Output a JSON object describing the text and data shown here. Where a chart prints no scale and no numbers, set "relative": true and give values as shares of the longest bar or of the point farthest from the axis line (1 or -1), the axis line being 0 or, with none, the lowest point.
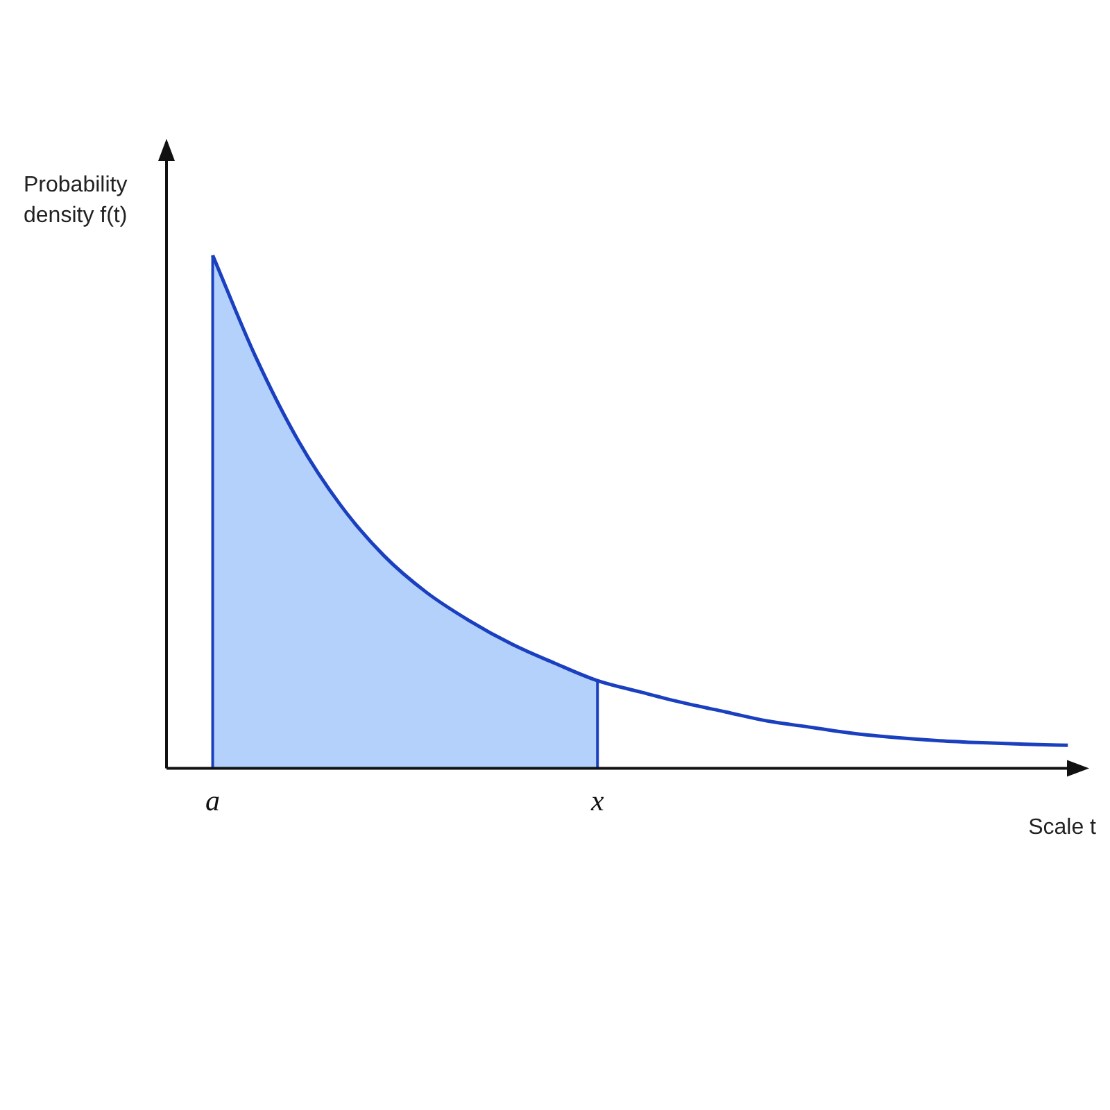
{
  "chart_data": {
    "type": "line",
    "relative": true,
    "xlabel": "Scale t",
    "ylabel": "Probability density f(t)",
    "marker": "none",
    "ref_lines": [
      {
        "axis": "x",
        "value": "a",
        "color": "#1a3fbf"
      },
      {
        "axis": "x",
        "value": "x",
        "color": "#1a3fbf"
      }
    ],
    "categories": [
      "a",
      null,
      null,
      null,
      null,
      null,
      null,
      null,
      null,
      "x",
      null,
      null,
      null,
      null,
      null,
      null,
      null,
      null,
      null,
      null,
      null
    ],
    "series": [
      {
        "type": "area",
        "color": "#b3d1fb",
        "values": [
          1,
          0.803,
          0.639,
          0.512,
          0.415,
          0.343,
          0.288,
          0.242,
          0.205,
          0.171,
          null,
          null,
          null,
          null,
          null,
          null,
          null,
          null,
          null,
          null,
          null
        ]
      },
      {
        "type": "line",
        "color": "#1a3fbf",
        "values": [
          1,
          0.803,
          0.639,
          0.512,
          0.415,
          0.343,
          0.288,
          0.242,
          0.205,
          0.171,
          0.149,
          0.128,
          0.11,
          0.092,
          0.08,
          0.068,
          0.06,
          0.054,
          0.05,
          0.047,
          0.045
        ]
      }
    ]
  }
}
